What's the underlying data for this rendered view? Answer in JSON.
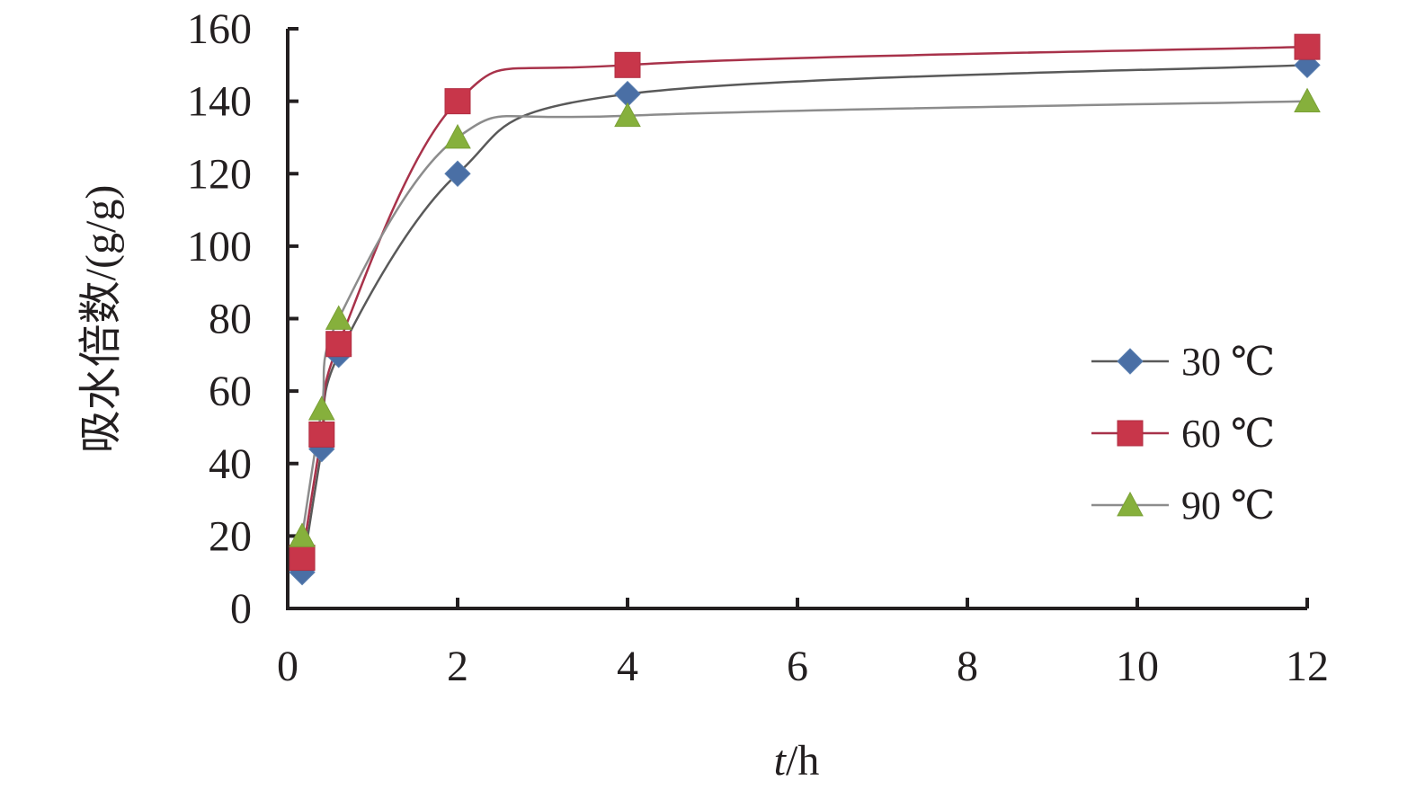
{
  "chart_data": {
    "type": "line",
    "xlabel": "t/h",
    "xlabel_italic_part": "t",
    "xlabel_rest": "/h",
    "ylabel": "吸水倍数/(g/g)",
    "xlim": [
      0,
      12
    ],
    "ylim": [
      0,
      160
    ],
    "xticks": [
      0,
      2,
      4,
      6,
      8,
      10,
      12
    ],
    "yticks": [
      0,
      20,
      40,
      60,
      80,
      100,
      120,
      140,
      160
    ],
    "x_tick_labels": [
      "0",
      "2",
      "4",
      "6",
      "8",
      "10",
      "12"
    ],
    "y_tick_labels": [
      "0",
      "20",
      "40",
      "60",
      "80",
      "100",
      "120",
      "140",
      "160"
    ],
    "grid": false,
    "legend_position": "right",
    "series": [
      {
        "name": "30 ℃",
        "marker": "diamond",
        "color": "#4a6fa5",
        "line_color": "#595959",
        "x": [
          0.17,
          0.4,
          0.6,
          2,
          4,
          12
        ],
        "y": [
          10,
          44,
          70,
          120,
          142,
          150
        ]
      },
      {
        "name": "60 ℃",
        "marker": "square",
        "color": "#c8364a",
        "line_color": "#a8324a",
        "x": [
          0.17,
          0.4,
          0.6,
          2,
          4,
          12
        ],
        "y": [
          14,
          48,
          73,
          140,
          150,
          155
        ]
      },
      {
        "name": "90 ℃",
        "marker": "triangle",
        "color": "#86b03c",
        "line_color": "#8c8c8c",
        "x": [
          0.17,
          0.4,
          0.6,
          2,
          4,
          12
        ],
        "y": [
          20,
          55,
          80,
          130,
          136,
          140
        ]
      }
    ]
  }
}
